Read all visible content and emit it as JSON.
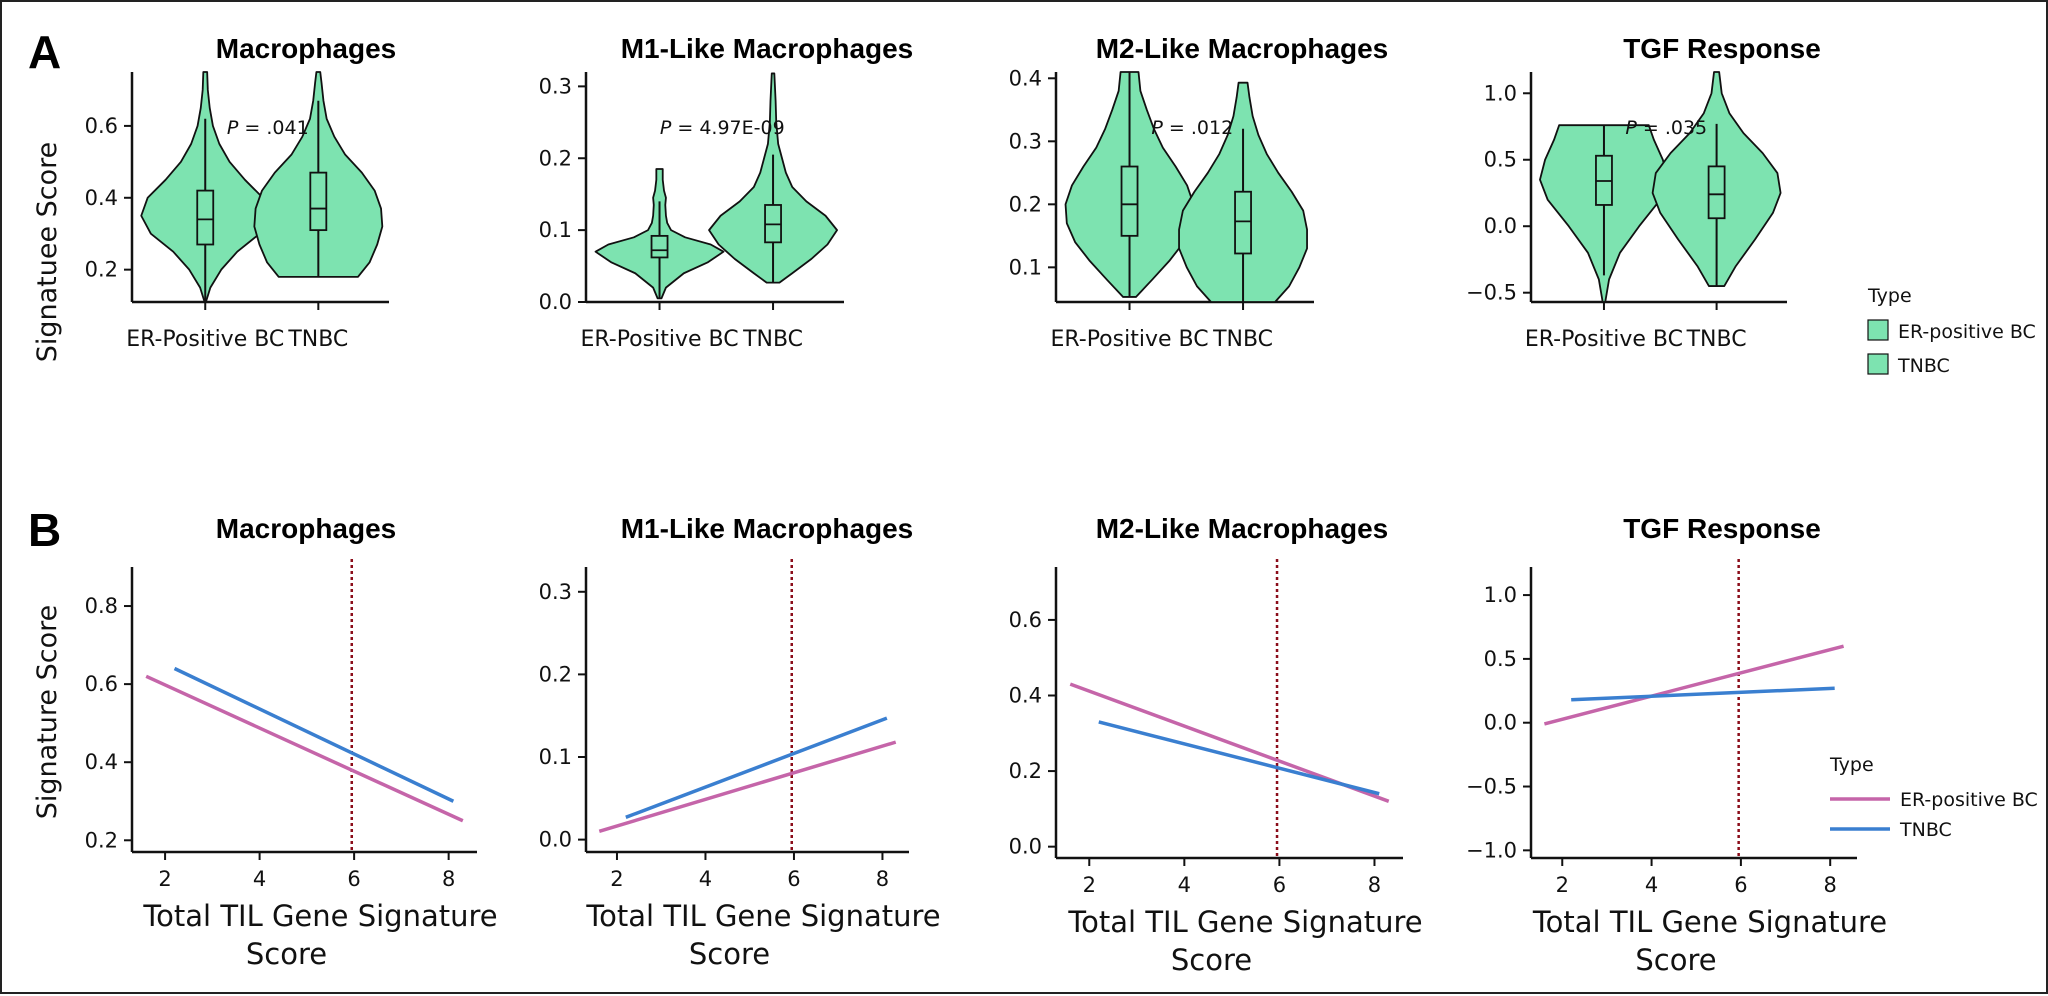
{
  "figure": {
    "panel_a_label": "A",
    "panel_b_label": "B",
    "row_a_ylabel": "Signatuee Score",
    "row_b_ylabel": "Signature Score",
    "xlabel_line1": "Total TIL Gene Signature",
    "xlabel_line2": "Score",
    "p_prefix": "P",
    "violin_fill": "#7de3b0",
    "color_er": "#c565a9",
    "color_tnbc": "#3a7fd0",
    "vline_color": "#8b0d1a",
    "legend_title": "Type",
    "legend_er": "ER-positive BC",
    "legend_tnbc": "TNBC"
  },
  "chart_data": [
    {
      "type": "violin",
      "title": "Macrophages",
      "ylabel": "Signatuee Score",
      "categories": [
        "ER-Positive BC",
        "TNBC"
      ],
      "ylim": [
        0.11,
        0.75
      ],
      "yticks": [
        "0.2",
        "0.4",
        "0.6"
      ],
      "ytick_values": [
        0.2,
        0.4,
        0.6
      ],
      "p_value": "= .041",
      "groups": [
        {
          "name": "ER-positive BC",
          "min": 0.11,
          "max": 0.75,
          "q1": 0.27,
          "median": 0.34,
          "q3": 0.42,
          "whisker_low": 0.11,
          "whisker_high": 0.62,
          "density": [
            [
              0.11,
              0.01
            ],
            [
              0.15,
              0.08
            ],
            [
              0.2,
              0.25
            ],
            [
              0.25,
              0.5
            ],
            [
              0.3,
              0.85
            ],
            [
              0.35,
              1.0
            ],
            [
              0.4,
              0.9
            ],
            [
              0.45,
              0.62
            ],
            [
              0.5,
              0.38
            ],
            [
              0.55,
              0.22
            ],
            [
              0.6,
              0.12
            ],
            [
              0.65,
              0.07
            ],
            [
              0.7,
              0.04
            ],
            [
              0.75,
              0.03
            ]
          ]
        },
        {
          "name": "TNBC",
          "min": 0.18,
          "max": 0.75,
          "q1": 0.31,
          "median": 0.37,
          "q3": 0.47,
          "whisker_low": 0.18,
          "whisker_high": 0.67,
          "density": [
            [
              0.18,
              0.62
            ],
            [
              0.22,
              0.8
            ],
            [
              0.27,
              0.92
            ],
            [
              0.32,
              1.0
            ],
            [
              0.37,
              0.98
            ],
            [
              0.42,
              0.88
            ],
            [
              0.47,
              0.68
            ],
            [
              0.52,
              0.42
            ],
            [
              0.57,
              0.25
            ],
            [
              0.62,
              0.13
            ],
            [
              0.67,
              0.08
            ],
            [
              0.72,
              0.05
            ],
            [
              0.75,
              0.03
            ]
          ]
        }
      ]
    },
    {
      "type": "violin",
      "title": "M1-Like Macrophages",
      "categories": [
        "ER-Positive BC",
        "TNBC"
      ],
      "ylim": [
        0.0,
        0.32
      ],
      "yticks": [
        "0.0",
        "0.1",
        "0.2",
        "0.3"
      ],
      "ytick_values": [
        0.0,
        0.1,
        0.2,
        0.3
      ],
      "p_value": "= 4.97E-09",
      "groups": [
        {
          "name": "ER-positive BC",
          "min": 0.005,
          "max": 0.185,
          "q1": 0.062,
          "median": 0.072,
          "q3": 0.092,
          "whisker_low": 0.005,
          "whisker_high": 0.14,
          "density": [
            [
              0.005,
              0.03
            ],
            [
              0.02,
              0.1
            ],
            [
              0.04,
              0.38
            ],
            [
              0.055,
              0.75
            ],
            [
              0.07,
              1.0
            ],
            [
              0.08,
              0.8
            ],
            [
              0.09,
              0.4
            ],
            [
              0.1,
              0.18
            ],
            [
              0.11,
              0.12
            ],
            [
              0.12,
              0.1
            ],
            [
              0.135,
              0.09
            ],
            [
              0.145,
              0.1
            ],
            [
              0.155,
              0.07
            ],
            [
              0.17,
              0.05
            ],
            [
              0.185,
              0.05
            ]
          ]
        },
        {
          "name": "TNBC",
          "min": 0.027,
          "max": 0.318,
          "q1": 0.083,
          "median": 0.108,
          "q3": 0.135,
          "whisker_low": 0.027,
          "whisker_high": 0.205,
          "density": [
            [
              0.027,
              0.1
            ],
            [
              0.04,
              0.3
            ],
            [
              0.06,
              0.6
            ],
            [
              0.08,
              0.85
            ],
            [
              0.1,
              1.0
            ],
            [
              0.12,
              0.82
            ],
            [
              0.14,
              0.52
            ],
            [
              0.16,
              0.3
            ],
            [
              0.18,
              0.2
            ],
            [
              0.2,
              0.14
            ],
            [
              0.22,
              0.08
            ],
            [
              0.25,
              0.05
            ],
            [
              0.28,
              0.04
            ],
            [
              0.318,
              0.02
            ]
          ]
        }
      ]
    },
    {
      "type": "violin",
      "title": "M2-Like Macrophages",
      "categories": [
        "ER-Positive BC",
        "TNBC"
      ],
      "ylim": [
        0.045,
        0.41
      ],
      "yticks": [
        "0.1",
        "0.2",
        "0.3",
        "0.4"
      ],
      "ytick_values": [
        0.1,
        0.2,
        0.3,
        0.4
      ],
      "p_value": "= .012",
      "groups": [
        {
          "name": "ER-positive BC",
          "min": 0.053,
          "max": 0.41,
          "q1": 0.15,
          "median": 0.2,
          "q3": 0.26,
          "whisker_low": 0.053,
          "whisker_high": 0.41,
          "density": [
            [
              0.053,
              0.1
            ],
            [
              0.08,
              0.35
            ],
            [
              0.11,
              0.62
            ],
            [
              0.14,
              0.85
            ],
            [
              0.17,
              0.98
            ],
            [
              0.2,
              1.0
            ],
            [
              0.23,
              0.9
            ],
            [
              0.26,
              0.72
            ],
            [
              0.29,
              0.52
            ],
            [
              0.32,
              0.38
            ],
            [
              0.35,
              0.27
            ],
            [
              0.38,
              0.17
            ],
            [
              0.41,
              0.14
            ]
          ]
        },
        {
          "name": "TNBC",
          "min": 0.045,
          "max": 0.393,
          "q1": 0.122,
          "median": 0.173,
          "q3": 0.22,
          "whisker_low": 0.045,
          "whisker_high": 0.32,
          "density": [
            [
              0.045,
              0.5
            ],
            [
              0.07,
              0.72
            ],
            [
              0.1,
              0.88
            ],
            [
              0.13,
              1.0
            ],
            [
              0.16,
              1.0
            ],
            [
              0.19,
              0.94
            ],
            [
              0.22,
              0.76
            ],
            [
              0.25,
              0.55
            ],
            [
              0.28,
              0.37
            ],
            [
              0.31,
              0.24
            ],
            [
              0.34,
              0.15
            ],
            [
              0.37,
              0.1
            ],
            [
              0.393,
              0.07
            ]
          ]
        }
      ]
    },
    {
      "type": "violin",
      "title": "TGF Response",
      "categories": [
        "ER-Positive BC",
        "TNBC"
      ],
      "ylim": [
        -0.57,
        1.16
      ],
      "yticks": [
        "−0.5",
        "0.0",
        "0.5",
        "1.0"
      ],
      "ytick_values": [
        -0.5,
        0.0,
        0.5,
        1.0
      ],
      "p_value": "= .035",
      "legend": {
        "title": "Type",
        "entries": [
          "ER-positive BC",
          "TNBC"
        ]
      },
      "groups": [
        {
          "name": "ER-positive BC",
          "min": -0.57,
          "max": 0.76,
          "q1": 0.16,
          "median": 0.34,
          "q3": 0.53,
          "whisker_low": -0.37,
          "whisker_high": 0.76,
          "density": [
            [
              -0.57,
              0.02
            ],
            [
              -0.4,
              0.08
            ],
            [
              -0.2,
              0.25
            ],
            [
              0.0,
              0.55
            ],
            [
              0.2,
              0.88
            ],
            [
              0.35,
              1.0
            ],
            [
              0.5,
              0.92
            ],
            [
              0.65,
              0.78
            ],
            [
              0.76,
              0.7
            ]
          ]
        },
        {
          "name": "TNBC",
          "min": -0.45,
          "max": 1.16,
          "q1": 0.06,
          "median": 0.24,
          "q3": 0.45,
          "whisker_low": -0.45,
          "whisker_high": 0.77,
          "density": [
            [
              -0.45,
              0.12
            ],
            [
              -0.3,
              0.3
            ],
            [
              -0.1,
              0.6
            ],
            [
              0.1,
              0.88
            ],
            [
              0.25,
              1.0
            ],
            [
              0.4,
              0.95
            ],
            [
              0.55,
              0.72
            ],
            [
              0.7,
              0.42
            ],
            [
              0.85,
              0.2
            ],
            [
              1.0,
              0.08
            ],
            [
              1.16,
              0.04
            ]
          ]
        }
      ]
    },
    {
      "type": "line",
      "title": "Macrophages",
      "ylabel": "Signature Score",
      "xlabel": "Total TIL Gene Signature Score",
      "xlim": [
        1.3,
        8.6
      ],
      "ylim": [
        0.17,
        0.9
      ],
      "xticks": [
        "2",
        "4",
        "6",
        "8"
      ],
      "xtick_values": [
        2,
        4,
        6,
        8
      ],
      "yticks": [
        "0.2",
        "0.4",
        "0.6",
        "0.8"
      ],
      "ytick_values": [
        0.2,
        0.4,
        0.6,
        0.8
      ],
      "vline_x": 5.95,
      "series": [
        {
          "name": "ER-positive BC",
          "x": [
            1.6,
            8.3
          ],
          "y": [
            0.62,
            0.25
          ]
        },
        {
          "name": "TNBC",
          "x": [
            2.2,
            8.1
          ],
          "y": [
            0.64,
            0.3
          ]
        }
      ]
    },
    {
      "type": "line",
      "title": "M1-Like Macrophages",
      "xlabel": "Total TIL Gene Signature Score",
      "xlim": [
        1.3,
        8.6
      ],
      "ylim": [
        -0.015,
        0.33
      ],
      "xticks": [
        "2",
        "4",
        "6",
        "8"
      ],
      "xtick_values": [
        2,
        4,
        6,
        8
      ],
      "yticks": [
        "0.0",
        "0.1",
        "0.2",
        "0.3"
      ],
      "ytick_values": [
        0.0,
        0.1,
        0.2,
        0.3
      ],
      "vline_x": 5.95,
      "series": [
        {
          "name": "ER-positive BC",
          "x": [
            1.6,
            8.3
          ],
          "y": [
            0.01,
            0.118
          ]
        },
        {
          "name": "TNBC",
          "x": [
            2.2,
            8.1
          ],
          "y": [
            0.027,
            0.147
          ]
        }
      ]
    },
    {
      "type": "line",
      "title": "M2-Like Macrophages",
      "xlabel": "Total TIL Gene Signature Score",
      "xlim": [
        1.3,
        8.6
      ],
      "ylim": [
        -0.03,
        0.74
      ],
      "xticks": [
        "2",
        "4",
        "6",
        "8"
      ],
      "xtick_values": [
        2,
        4,
        6,
        8
      ],
      "yticks": [
        "0.0",
        "0.2",
        "0.4",
        "0.6"
      ],
      "ytick_values": [
        0.0,
        0.2,
        0.4,
        0.6
      ],
      "vline_x": 5.95,
      "series": [
        {
          "name": "ER-positive BC",
          "x": [
            1.6,
            8.3
          ],
          "y": [
            0.43,
            0.12
          ]
        },
        {
          "name": "TNBC",
          "x": [
            2.2,
            8.1
          ],
          "y": [
            0.33,
            0.14
          ]
        }
      ]
    },
    {
      "type": "line",
      "title": "TGF Response",
      "xlabel": "Total TIL Gene Signature Score",
      "xlim": [
        1.3,
        8.6
      ],
      "ylim": [
        -1.06,
        1.22
      ],
      "xticks": [
        "2",
        "4",
        "6",
        "8"
      ],
      "xtick_values": [
        2,
        4,
        6,
        8
      ],
      "yticks": [
        "−1.0",
        "−0.5",
        "0.0",
        "0.5",
        "1.0"
      ],
      "ytick_values": [
        -1.0,
        -0.5,
        0.0,
        0.5,
        1.0
      ],
      "vline_x": 5.95,
      "legend": {
        "title": "Type",
        "entries": [
          "ER-positive BC",
          "TNBC"
        ]
      },
      "series": [
        {
          "name": "ER-positive BC",
          "x": [
            1.6,
            8.3
          ],
          "y": [
            -0.01,
            0.6
          ]
        },
        {
          "name": "TNBC",
          "x": [
            2.2,
            8.1
          ],
          "y": [
            0.18,
            0.27
          ]
        }
      ]
    }
  ]
}
